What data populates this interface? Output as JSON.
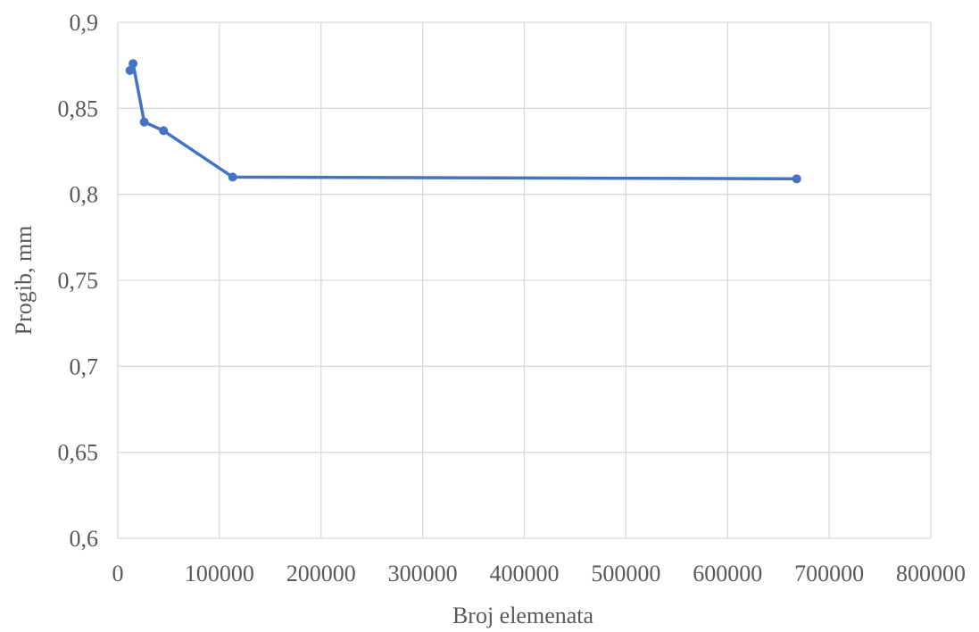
{
  "chart_data": {
    "type": "scatter",
    "xlabel": "Broj elemenata",
    "ylabel": "Progib, mm",
    "xlim": [
      0,
      800000
    ],
    "ylim": [
      0.6,
      0.9
    ],
    "x_ticks": [
      0,
      100000,
      200000,
      300000,
      400000,
      500000,
      600000,
      700000,
      800000
    ],
    "x_tick_labels": [
      "0",
      "100000",
      "200000",
      "300000",
      "400000",
      "500000",
      "600000",
      "700000",
      "800000"
    ],
    "y_ticks": [
      0.6,
      0.65,
      0.7,
      0.75,
      0.8,
      0.85,
      0.9
    ],
    "y_tick_labels": [
      "0,6",
      "0,65",
      "0,7",
      "0,75",
      "0,8",
      "0,85",
      "0,9"
    ],
    "grid": true,
    "legend": "none",
    "series": [
      {
        "color": "#4472c4",
        "x": [
          12000,
          15000,
          26000,
          45000,
          113000,
          668000
        ],
        "y": [
          0.872,
          0.876,
          0.842,
          0.837,
          0.81,
          0.809
        ]
      }
    ]
  }
}
